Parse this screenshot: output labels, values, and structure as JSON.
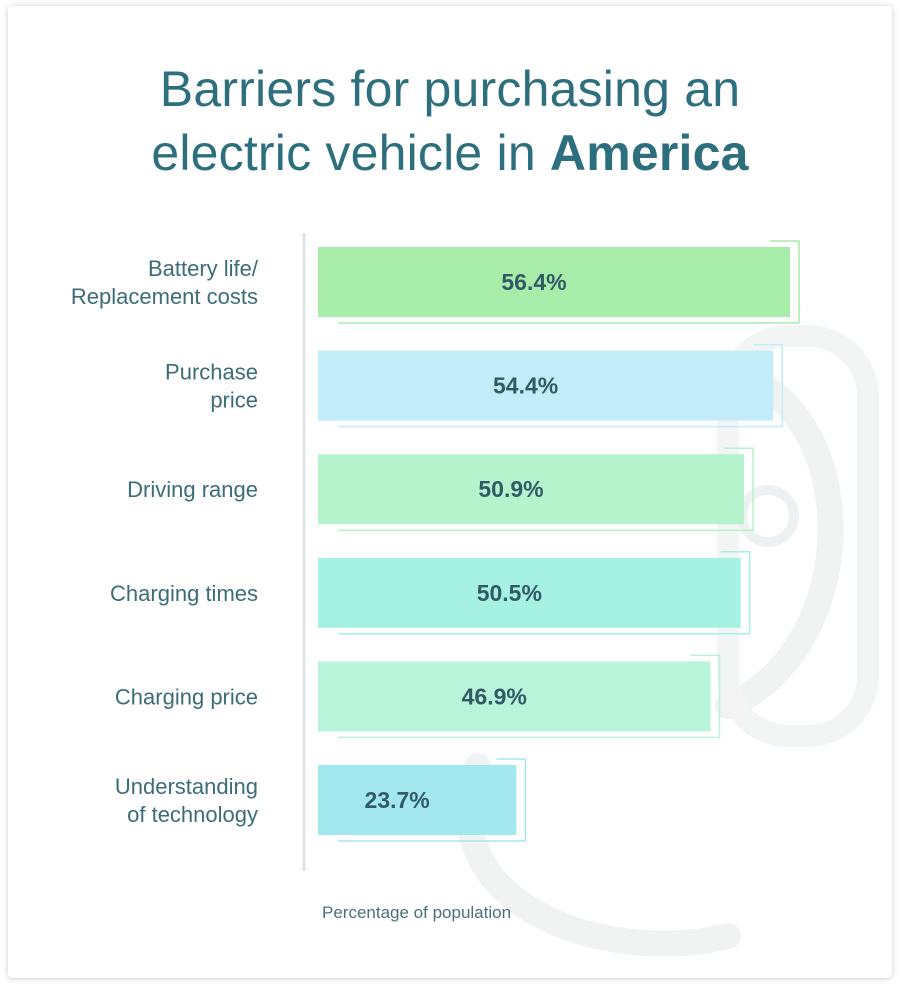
{
  "title": {
    "line1": "Barriers for purchasing an",
    "line2_prefix": "electric vehicle in ",
    "line2_emphasis": "America"
  },
  "chart_data": {
    "type": "bar",
    "orientation": "horizontal",
    "title": "Barriers for purchasing an electric vehicle in America",
    "xlabel": "Percentage of population",
    "ylabel": "",
    "categories": [
      [
        "Battery life/",
        "Replacement costs"
      ],
      [
        "Purchase",
        "price"
      ],
      [
        "Driving range"
      ],
      [
        "Charging times"
      ],
      [
        "Charging price"
      ],
      [
        "Understanding",
        "of technology"
      ]
    ],
    "values": [
      56.4,
      54.4,
      50.9,
      50.5,
      46.9,
      23.7
    ],
    "value_labels": [
      "56.4%",
      "54.4%",
      "50.9%",
      "50.5%",
      "46.9%",
      "23.7%"
    ],
    "colors": [
      "#a8ecaa",
      "#c2ecf8",
      "#b5f3cd",
      "#a6f2e2",
      "#b8f4d9",
      "#a3e8ef"
    ],
    "xlim": [
      0,
      56.4
    ],
    "grid": false,
    "legend": "none"
  }
}
